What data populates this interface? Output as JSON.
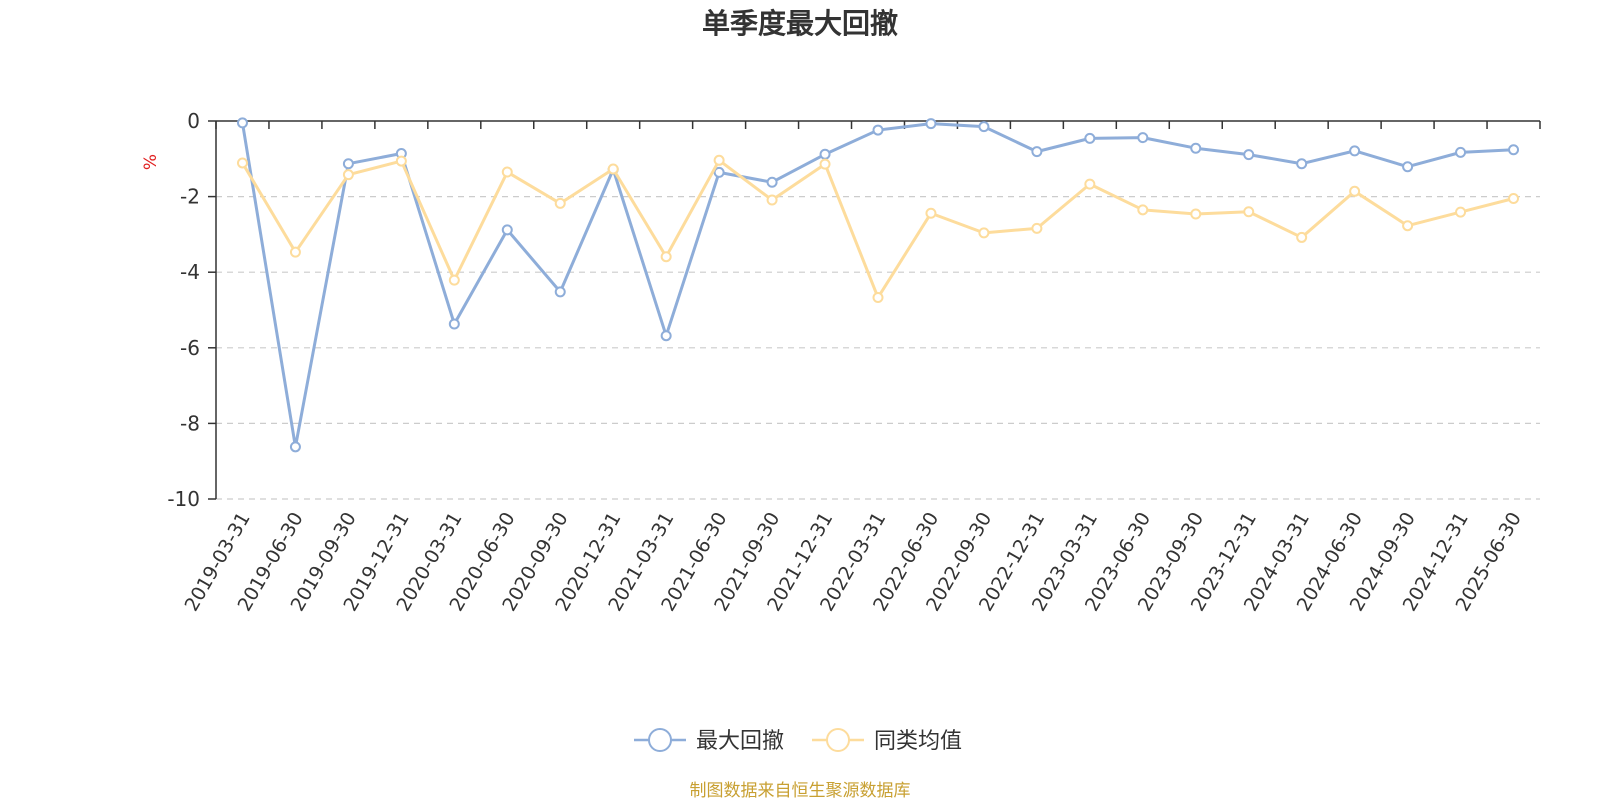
{
  "chart_data": {
    "type": "line",
    "title": "单季度最大回撤",
    "ylabel": "%",
    "ylim": [
      -10,
      0
    ],
    "yticks": [
      0,
      -2,
      -4,
      -6,
      -8,
      -10
    ],
    "grid": true,
    "legend_position": "bottom-center",
    "categories": [
      "2019-03-31",
      "2019-06-30",
      "2019-09-30",
      "2019-12-31",
      "2020-03-31",
      "2020-06-30",
      "2020-09-30",
      "2020-12-31",
      "2021-03-31",
      "2021-06-30",
      "2021-09-30",
      "2021-12-31",
      "2022-03-31",
      "2022-06-30",
      "2022-09-30",
      "2022-12-31",
      "2023-03-31",
      "2023-06-30",
      "2023-09-30",
      "2023-12-31",
      "2024-03-31",
      "2024-06-30",
      "2024-09-30",
      "2024-12-31",
      "2025-06-30"
    ],
    "series": [
      {
        "name": "最大回撤",
        "color": "#8eadd9",
        "values": [
          -0.05,
          -8.62,
          -1.13,
          -0.86,
          -5.37,
          -2.88,
          -4.52,
          -1.28,
          -5.68,
          -1.36,
          -1.62,
          -0.88,
          -0.24,
          -0.07,
          -0.15,
          -0.81,
          -0.46,
          -0.44,
          -0.72,
          -0.89,
          -1.13,
          -0.79,
          -1.21,
          -0.83,
          -0.76
        ]
      },
      {
        "name": "同类均值",
        "color": "#fddc9c",
        "values": [
          -1.11,
          -3.47,
          -1.42,
          -1.06,
          -4.21,
          -1.35,
          -2.18,
          -1.27,
          -3.59,
          -1.04,
          -2.09,
          -1.14,
          -4.67,
          -2.44,
          -2.96,
          -2.84,
          -1.67,
          -2.35,
          -2.46,
          -2.4,
          -3.08,
          -1.86,
          -2.77,
          -2.41,
          -2.05
        ]
      }
    ]
  },
  "footer": {
    "source": "制图数据来自恒生聚源数据库"
  }
}
